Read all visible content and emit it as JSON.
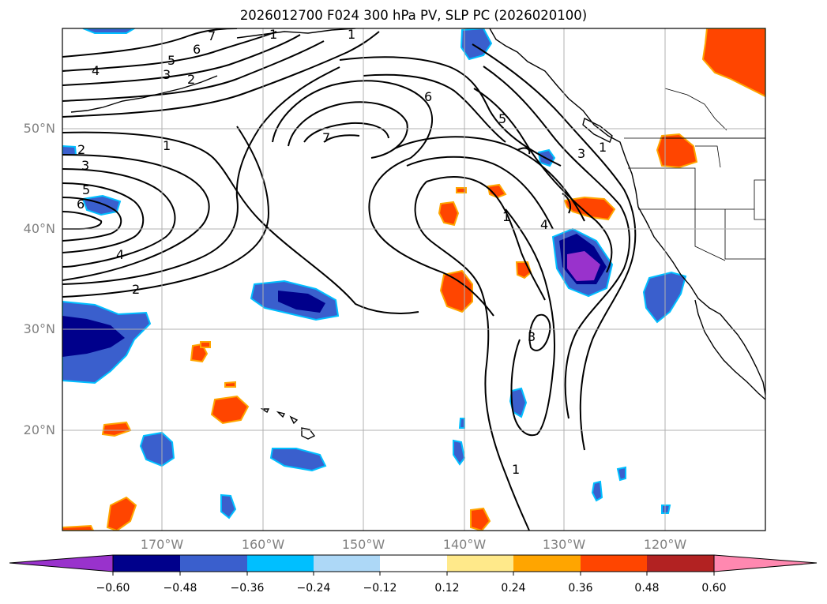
{
  "title": "2026012700 F024 300 hPa PV, SLP PC (2026020100)",
  "map": {
    "lat_labels": [
      "50°N",
      "40°N",
      "30°N",
      "20°N"
    ],
    "lon_labels": [
      "170°W",
      "160°W",
      "150°W",
      "140°W",
      "130°W",
      "120°W"
    ],
    "contour_labels": [
      "7",
      "6",
      "5",
      "4",
      "3",
      "2",
      "1",
      "2",
      "3",
      "5",
      "6",
      "1",
      "7",
      "6",
      "5",
      "3",
      "1",
      "1",
      "4",
      "4",
      "2",
      "3",
      "1",
      "1"
    ]
  },
  "colorbar": {
    "ticks": [
      "−0.60",
      "−0.48",
      "−0.36",
      "−0.24",
      "−0.12",
      "0.12",
      "0.24",
      "0.36",
      "0.48",
      "0.60"
    ],
    "colors": [
      "#9932cc",
      "#00008b",
      "#3a5fcd",
      "#00bfff",
      "#add8f7",
      "#ffffff",
      "#ffe98a",
      "#ffa500",
      "#ff4500",
      "#b22222",
      "#ff88b0"
    ]
  }
}
